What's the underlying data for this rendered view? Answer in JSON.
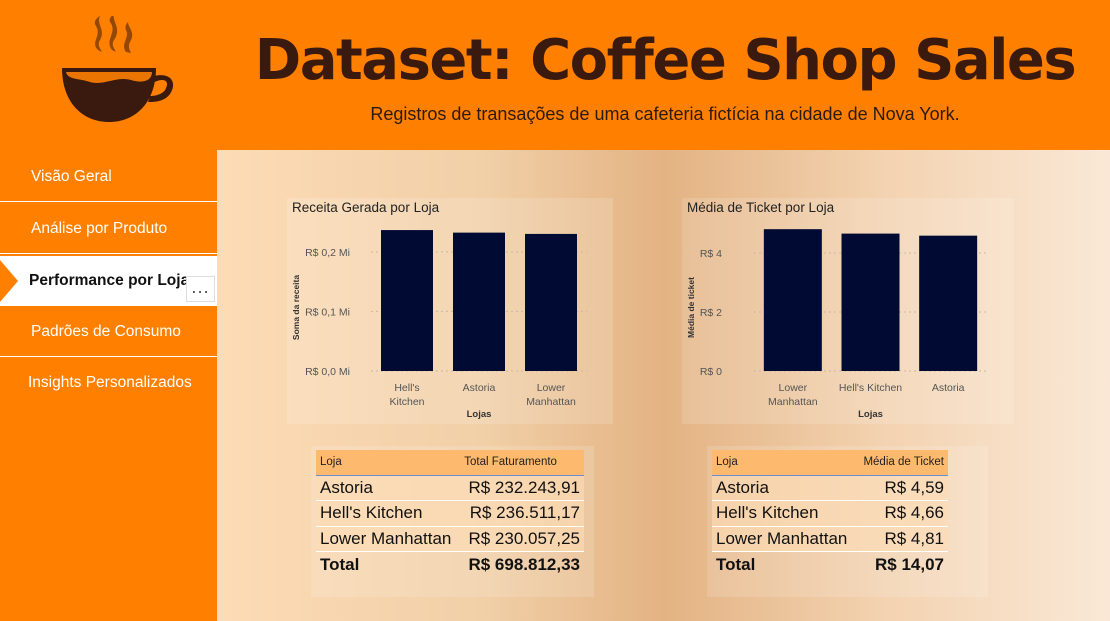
{
  "header": {
    "title": "Dataset: Coffee Shop Sales",
    "subtitle": "Registros de transações de uma cafeteria fictícia na cidade de Nova York."
  },
  "icons": {
    "logo": "coffee-cup-icon",
    "more": "more-options-icon"
  },
  "colors": {
    "header_bg": "#ff8000",
    "title": "#3a1a0e",
    "bar": "#000a33",
    "table_header": "#fdb96d"
  },
  "nav": {
    "items": [
      {
        "label": "Visão Geral"
      },
      {
        "label": "Análise por Produto"
      },
      {
        "label": "Performance por Loja",
        "active": true
      },
      {
        "label": "Padrões de Consumo"
      },
      {
        "label": "Insights Personalizados"
      }
    ],
    "more_label": "..."
  },
  "chart_data": [
    {
      "type": "bar",
      "title": "Receita Gerada por Loja",
      "xlabel": "Lojas",
      "ylabel": "Soma da receita",
      "categories": [
        "Hell's Kitchen",
        "Astoria",
        "Lower Manhattan"
      ],
      "category_lines": [
        [
          "Hell's",
          "Kitchen"
        ],
        [
          "Astoria"
        ],
        [
          "Lower",
          "Manhattan"
        ]
      ],
      "values": [
        236511.17,
        232243.91,
        230057.25
      ],
      "yticks": [
        0,
        100000,
        200000
      ],
      "ytick_labels": [
        "R$ 0,0 Mi",
        "R$ 0,1 Mi",
        "R$ 0,2 Mi"
      ],
      "ylim": [
        0,
        240000
      ],
      "grid": true
    },
    {
      "type": "bar",
      "title": "Média de Ticket por Loja",
      "xlabel": "Lojas",
      "ylabel": "Média de ticket",
      "categories": [
        "Lower Manhattan",
        "Hell's Kitchen",
        "Astoria"
      ],
      "category_lines": [
        [
          "Lower",
          "Manhattan"
        ],
        [
          "Hell's Kitchen"
        ],
        [
          "Astoria"
        ]
      ],
      "values": [
        4.81,
        4.66,
        4.59
      ],
      "yticks": [
        0,
        2,
        4
      ],
      "ytick_labels": [
        "R$ 0",
        "R$ 2",
        "R$ 4"
      ],
      "ylim": [
        0,
        4.85
      ],
      "grid": true
    }
  ],
  "tables": [
    {
      "headers": [
        "Loja",
        "Total Faturamento"
      ],
      "rows": [
        [
          "Astoria",
          "R$ 232.243,91"
        ],
        [
          "Hell's Kitchen",
          "R$ 236.511,17"
        ],
        [
          "Lower Manhattan",
          "R$ 230.057,25"
        ]
      ],
      "total": [
        "Total",
        "R$ 698.812,33"
      ]
    },
    {
      "headers": [
        "Loja",
        "Média de Ticket"
      ],
      "rows": [
        [
          "Astoria",
          "R$ 4,59"
        ],
        [
          "Hell's Kitchen",
          "R$ 4,66"
        ],
        [
          "Lower Manhattan",
          "R$ 4,81"
        ]
      ],
      "total": [
        "Total",
        "R$ 14,07"
      ]
    }
  ]
}
